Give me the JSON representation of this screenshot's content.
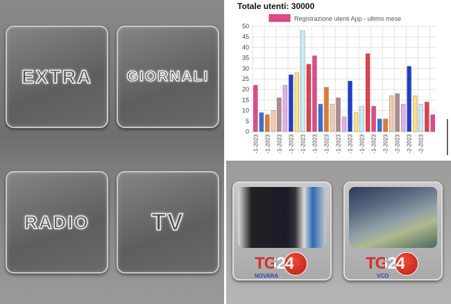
{
  "menu": {
    "tiles": [
      "EXTRA",
      "GIORNALI",
      "RADIO",
      "TV"
    ]
  },
  "channels": [
    {
      "logo": "TG24",
      "sub": "NOVARA"
    },
    {
      "logo": "TG24",
      "sub": "VCO"
    }
  ],
  "chart_data": {
    "type": "bar",
    "title": "Totale utenti: 30000",
    "legend": "Registrazione utenti App - ultimo mese",
    "legend_color": "#e0488c",
    "ylim": [
      0,
      50
    ],
    "yticks": [
      0,
      5,
      10,
      15,
      20,
      25,
      30,
      35,
      40,
      45,
      50
    ],
    "grid": true,
    "xtick_labels": [
      "-1-2023",
      "-1-2023",
      "-1-2023",
      "-1-2023",
      "-1-2023",
      "-1-2023",
      "-1-2023",
      "-1-2023",
      "-1-2023",
      "-1-2023",
      "-1-2023",
      "-2-2023",
      "-2-2023",
      "-2-2023",
      "-2-2023"
    ],
    "values": [
      22,
      9,
      8,
      10,
      16,
      22,
      27,
      28,
      48,
      32,
      36,
      13,
      21,
      13,
      16,
      7,
      24,
      9,
      12,
      37,
      12,
      6,
      6,
      17,
      18,
      13,
      31,
      17,
      13,
      14,
      8
    ],
    "colors": [
      "#e0488c",
      "#3a6fd8",
      "#e07a2a",
      "#f7c9b0",
      "#b08a90",
      "#e2b0e8",
      "#1f3fc8",
      "#f8e08a",
      "#c8eaf4",
      "#e0404c"
    ]
  }
}
